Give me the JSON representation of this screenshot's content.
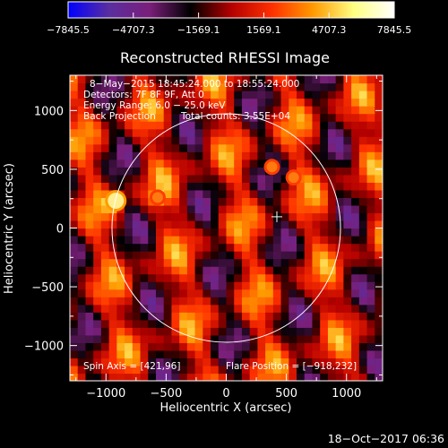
{
  "chart_data": {
    "type": "heatmap",
    "title": "Reconstructed RHESSI Image",
    "xlabel": "Heliocentric X (arcsec)",
    "ylabel": "Heliocentric Y (arcsec)",
    "xlim": [
      -1300,
      1300
    ],
    "ylim": [
      -1300,
      1300
    ],
    "xticks": [
      -1000,
      -500,
      0,
      500,
      1000
    ],
    "yticks": [
      -1000,
      -500,
      0,
      500,
      1000
    ],
    "colorbar": {
      "ticks": [
        -7845.5,
        -4707.3,
        -1569.1,
        1569.1,
        4707.3,
        7845.5
      ],
      "tick_labels": [
        "−7845.5",
        "−4707.3",
        "−1569.1",
        "1569.1",
        "4707.3",
        "7845.5"
      ],
      "colormap": [
        "#0000ff",
        "#5a2ea0",
        "#7a1f7a",
        "#000000",
        "#b30000",
        "#ff3000",
        "#ff9900",
        "#ffff80",
        "#ffffff"
      ]
    },
    "info_lines": [
      "8−May−2015 18:45:24.000 to 18:55:24.000",
      "Detectors: 7F 8F 9F, Att 0",
      "Energy Range: 6.0 − 25.0 keV",
      "Back Projection",
      "Total counts: 3.55E+04"
    ],
    "spin_axis": "Spin Axis = [421,96]",
    "flare_position": "Flare Position = [−918,232]",
    "solar_disk": {
      "center": [
        0,
        0
      ],
      "radius_arcsec": 950
    },
    "spin_axis_marker": [
      421,
      96
    ],
    "sources": [
      {
        "x": -918,
        "y": 232,
        "value": 7845.5
      },
      {
        "x": -570,
        "y": 260,
        "value": 5200
      },
      {
        "x": 380,
        "y": 520,
        "value": 2800
      },
      {
        "x": 560,
        "y": 430,
        "value": 2600
      }
    ]
  },
  "footer": {
    "date": "18−Oct−2017 06:36"
  }
}
